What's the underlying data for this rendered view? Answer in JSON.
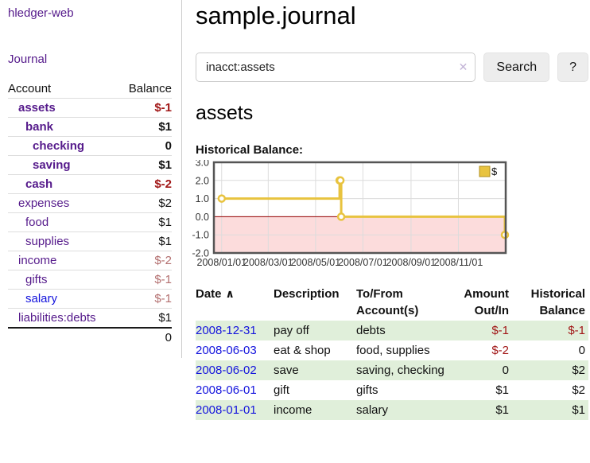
{
  "app": {
    "title": "hledger-web",
    "nav_journal": "Journal"
  },
  "sidebar": {
    "header": {
      "account": "Account",
      "balance": "Balance"
    },
    "accounts": [
      {
        "name": "assets",
        "depth": 1,
        "bold": true,
        "link": "purple",
        "balance": "$-1",
        "balance_class": "negs"
      },
      {
        "name": "bank",
        "depth": 2,
        "bold": true,
        "link": "purple",
        "balance": "$1",
        "balance_class": ""
      },
      {
        "name": "checking",
        "depth": 3,
        "bold": true,
        "link": "purple",
        "balance": "0",
        "balance_class": ""
      },
      {
        "name": "saving",
        "depth": 3,
        "bold": true,
        "link": "purple",
        "balance": "$1",
        "balance_class": ""
      },
      {
        "name": "cash",
        "depth": 2,
        "bold": true,
        "link": "purple",
        "balance": "$-2",
        "balance_class": "negs"
      },
      {
        "name": "expenses",
        "depth": 1,
        "bold": false,
        "link": "purple",
        "balance": "$2",
        "balance_class": ""
      },
      {
        "name": "food",
        "depth": 2,
        "bold": false,
        "link": "purple",
        "balance": "$1",
        "balance_class": ""
      },
      {
        "name": "supplies",
        "depth": 2,
        "bold": false,
        "link": "purple",
        "balance": "$1",
        "balance_class": ""
      },
      {
        "name": "income",
        "depth": 1,
        "bold": false,
        "link": "purple",
        "balance": "$-2",
        "balance_class": "negm"
      },
      {
        "name": "gifts",
        "depth": 2,
        "bold": false,
        "link": "purple",
        "balance": "$-1",
        "balance_class": "negm"
      },
      {
        "name": "salary",
        "depth": 2,
        "bold": false,
        "link": "blue",
        "balance": "$-1",
        "balance_class": "negm"
      },
      {
        "name": "liabilities:debts",
        "depth": 1,
        "bold": false,
        "link": "purple",
        "balance": "$1",
        "balance_class": ""
      }
    ],
    "total": "0"
  },
  "main": {
    "title": "sample.journal",
    "search": {
      "value": "inacct:assets",
      "clear_icon": "✕",
      "search_button": "Search",
      "help_button": "?"
    },
    "account_heading": "assets",
    "chart_label": "Historical Balance:",
    "register": {
      "columns": [
        "Date",
        "Description",
        "To/From Account(s)",
        "Amount Out/In",
        "Historical Balance"
      ],
      "sort_icon": "∧",
      "rows": [
        {
          "date": "2008-12-31",
          "description": "pay off",
          "accounts": "debts",
          "amount": "$-1",
          "balance": "$-1"
        },
        {
          "date": "2008-06-03",
          "description": "eat & shop",
          "accounts": "food, supplies",
          "amount": "$-2",
          "balance": "0"
        },
        {
          "date": "2008-06-02",
          "description": "save",
          "accounts": "saving, checking",
          "amount": "0",
          "balance": "$2"
        },
        {
          "date": "2008-06-01",
          "description": "gift",
          "accounts": "gifts",
          "amount": "$1",
          "balance": "$2"
        },
        {
          "date": "2008-01-01",
          "description": "income",
          "accounts": "salary",
          "amount": "$1",
          "balance": "$1"
        }
      ]
    }
  },
  "chart_data": {
    "type": "line",
    "title": "Historical Balance",
    "step": true,
    "legend": {
      "label": "$",
      "position": "top-right"
    },
    "series": [
      {
        "name": "$",
        "points": [
          [
            "2008-01-01",
            1
          ],
          [
            "2008-06-01",
            2
          ],
          [
            "2008-06-02",
            2
          ],
          [
            "2008-06-03",
            0
          ],
          [
            "2008-12-31",
            -1
          ]
        ]
      }
    ],
    "x_ticks": [
      "2008/01/01",
      "2008/03/01",
      "2008/05/01",
      "2008/07/01",
      "2008/09/01",
      "2008/11/01"
    ],
    "y_ticks": [
      "3.0",
      "2.0",
      "1.0",
      "0.0",
      "-1.0",
      "-2.0"
    ],
    "ylim": [
      -2,
      3
    ],
    "xlim": [
      "2007-12-22",
      "2009-01-01"
    ],
    "grid": true,
    "colors": {
      "series": "#e8c33f",
      "marker_fill": "#ffffff",
      "negative_region": "#fcdcdc",
      "zero_line": "#990000",
      "gridline": "#dcdcdc",
      "border": "#555555",
      "legend_swatch": "#e8c33f",
      "legend_swatch_border": "#b18f1f"
    }
  }
}
